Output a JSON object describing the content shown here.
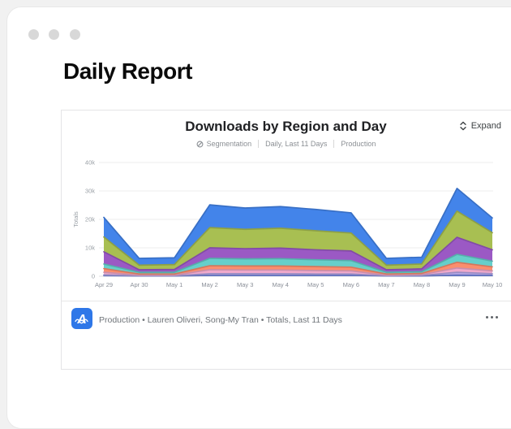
{
  "page": {
    "title": "Daily Report"
  },
  "window": {
    "control_dots": 3
  },
  "card": {
    "title": "Downloads by Region and Day",
    "subtitle": {
      "segmentation": "Segmentation",
      "range": "Daily, Last 11 Days",
      "environment": "Production"
    },
    "expand_label": "Expand",
    "footer": {
      "text": "Production • Lauren Oliveri, Song-My Tran • Totals, Last 11 Days",
      "app_icon": "insights-wave-a-icon",
      "menu_icon": "ellipsis-horizontal"
    }
  },
  "chart_data": {
    "type": "area",
    "stacked": true,
    "title": "Downloads by Region and Day",
    "xlabel": "",
    "ylabel": "Totals",
    "ylim": [
      0,
      40000
    ],
    "yticks": [
      "0",
      "10k",
      "20k",
      "30k",
      "40k"
    ],
    "grid": "horizontal",
    "legend": "none",
    "unit": "downloads",
    "categories": [
      "Apr 29",
      "Apr 30",
      "May 1",
      "May 2",
      "May 3",
      "May 4",
      "May 5",
      "May 6",
      "May 7",
      "May 8",
      "May 9",
      "May 10"
    ],
    "series": [
      {
        "name": "segment-periwinkle",
        "color": "#7486dd",
        "values": [
          200,
          100,
          100,
          300,
          300,
          300,
          300,
          300,
          100,
          100,
          400,
          300
        ]
      },
      {
        "name": "segment-lavender",
        "color": "#b7a8e8",
        "values": [
          300,
          100,
          100,
          600,
          600,
          600,
          500,
          500,
          100,
          200,
          1000,
          600
        ]
      },
      {
        "name": "segment-pink",
        "color": "#f0a9cb",
        "values": [
          900,
          200,
          200,
          1400,
          1300,
          1300,
          1200,
          1100,
          200,
          300,
          1500,
          1000
        ]
      },
      {
        "name": "segment-salmon",
        "color": "#fb8e6d",
        "values": [
          1300,
          400,
          400,
          1400,
          1400,
          1400,
          1400,
          1300,
          400,
          400,
          2000,
          1400
        ]
      },
      {
        "name": "segment-teal",
        "color": "#66cfca",
        "values": [
          1600,
          600,
          600,
          2600,
          2500,
          2600,
          2400,
          2300,
          600,
          600,
          2800,
          2000
        ]
      },
      {
        "name": "segment-purple",
        "color": "#9b59c4",
        "values": [
          4300,
          900,
          1000,
          3700,
          3600,
          3700,
          3500,
          3400,
          900,
          1000,
          6000,
          4000
        ]
      },
      {
        "name": "segment-olive",
        "color": "#a8bf52",
        "values": [
          5200,
          1600,
          1700,
          7100,
          6800,
          7000,
          6700,
          6300,
          1600,
          1700,
          9200,
          6000
        ]
      },
      {
        "name": "segment-blue",
        "color": "#4384ea",
        "values": [
          6900,
          2400,
          2400,
          8000,
          7500,
          7600,
          7500,
          7100,
          2400,
          2400,
          8000,
          5200
        ]
      }
    ]
  }
}
